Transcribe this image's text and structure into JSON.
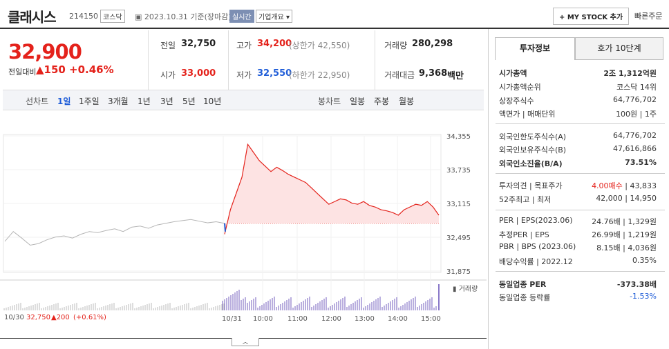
{
  "header": {
    "name": "클래시스",
    "code": "214150",
    "market": "코스닥",
    "date": "2023.10.31",
    "basis": "기준(장마감)",
    "realtime": "실시간",
    "overview": "기업개요",
    "overview_arrow": "▾",
    "mystock": "+ MY STOCK 추가",
    "quick_order": "빠른주문"
  },
  "quote": {
    "price": "32,900",
    "change_label": "전일대비",
    "change": "▲150",
    "change_pct": "+0.46%"
  },
  "stats": {
    "prev_label": "전일",
    "prev": "32,750",
    "high_label": "고가",
    "high": "34,200",
    "upper_limit": "(상한가 42,550)",
    "volume_label": "거래량",
    "volume": "280,298",
    "open_label": "시가",
    "open": "33,000",
    "low_label": "저가",
    "low": "32,550",
    "lower_limit": "(하한가 22,950)",
    "amount_label": "거래대금",
    "amount": "9,368",
    "amount_unit": "백만"
  },
  "chart_controls": {
    "line_label": "선차트",
    "periods": [
      "1일",
      "1주일",
      "3개월",
      "1년",
      "3년",
      "5년",
      "10년"
    ],
    "candle_label": "봉차트",
    "candles": [
      "일봉",
      "주봉",
      "월봉"
    ]
  },
  "chart_data": {
    "type": "line",
    "yticks": [
      "34,355",
      "33,735",
      "33,115",
      "32,495",
      "31,875"
    ],
    "ylim": [
      31875,
      34355
    ],
    "xticks": [
      "10/30",
      "10/31",
      "10:00",
      "11:00",
      "12:00",
      "13:00",
      "14:00",
      "15:00"
    ],
    "prev_close": 32750,
    "prev_day_summary": {
      "date": "10/30",
      "price": "32,750",
      "change": "▲200",
      "pct": "(+0.61%)"
    },
    "volume_label": "거래량",
    "prev_day_series": [
      32420,
      32600,
      32480,
      32350,
      32380,
      32450,
      32500,
      32520,
      32480,
      32550,
      32600,
      32580,
      32620,
      32650,
      32600,
      32680,
      32700,
      32660,
      32720,
      32750,
      32780,
      32800,
      32820,
      32790,
      32760,
      32780,
      32750
    ],
    "today_series": [
      32550,
      33000,
      33300,
      33600,
      34200,
      34050,
      33900,
      33800,
      33700,
      33780,
      33720,
      33650,
      33600,
      33550,
      33500,
      33400,
      33300,
      33200,
      33100,
      33150,
      33200,
      33180,
      33120,
      33100,
      33150,
      33080,
      33050,
      33000,
      32980,
      32950,
      32900,
      33000,
      33050,
      33100,
      33080,
      33150,
      33050,
      32900
    ]
  },
  "right_panel": {
    "tabs": [
      "투자정보",
      "호가 10단계"
    ],
    "s1": [
      {
        "l": "시가총액",
        "v": "2조 1,312억원"
      },
      {
        "l": "시가총액순위",
        "v": "코스닥 14위"
      },
      {
        "l": "상장주식수",
        "v": "64,776,702"
      },
      {
        "l": "액면가 | 매매단위",
        "v": "100원 | 1주"
      }
    ],
    "s2": [
      {
        "l": "외국인한도주식수(A)",
        "v": "64,776,702"
      },
      {
        "l": "외국인보유주식수(B)",
        "v": "47,616,866"
      },
      {
        "l": "외국인소진율(B/A)",
        "v": "73.51%"
      }
    ],
    "s3": [
      {
        "l": "투자의견 | 목표주가",
        "v1": "4.00매수",
        "v2": "| 43,833"
      },
      {
        "l": "52주최고 | 최저",
        "v": "42,000 | 14,950"
      }
    ],
    "s4": [
      {
        "l": "PER | EPS(2023.06)",
        "v": "24.76배 | 1,329원"
      },
      {
        "l": "추정PER | EPS",
        "v": "26.99배 | 1,219원"
      },
      {
        "l": "PBR | BPS (2023.06)",
        "v": "8.15배 | 4,036원"
      },
      {
        "l": "배당수익률 | 2022.12",
        "v": "0.35%"
      }
    ],
    "s5": [
      {
        "l": "동일업종 PER",
        "v": "-373.38배"
      },
      {
        "l": "동일업종 등락률",
        "v": "-1.53%"
      }
    ]
  }
}
